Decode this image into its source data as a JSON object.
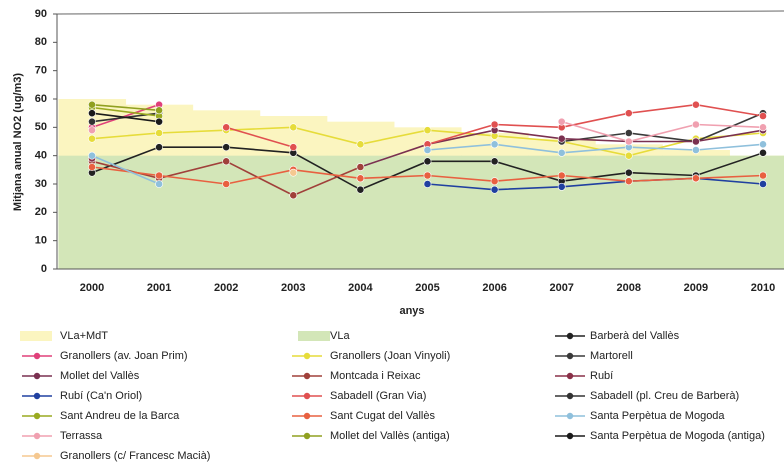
{
  "chart_data": {
    "type": "line",
    "y_label": "Mitjana anual NO2 (ug/m3)",
    "x_label": "anys",
    "categories": [
      "2000",
      "2001",
      "2002",
      "2003",
      "2004",
      "2005",
      "2006",
      "2007",
      "2008",
      "2009",
      "2010"
    ],
    "ylim": [
      0,
      90
    ],
    "yticks": [
      0,
      10,
      20,
      30,
      40,
      50,
      60,
      70,
      80,
      90
    ],
    "grid": false,
    "areas": [
      {
        "name": "VLa+MdT",
        "color": "#fbf5c0",
        "values": [
          60,
          58,
          56,
          54,
          52,
          50,
          48,
          46,
          44,
          42,
          40
        ]
      },
      {
        "name": "VLa",
        "color": "#d3e6b8",
        "values": [
          40,
          40,
          40,
          40,
          40,
          40,
          40,
          40,
          40,
          40,
          40
        ]
      }
    ],
    "series": [
      {
        "name": "Barberà del Vallès",
        "color": "#222222",
        "values": [
          34,
          43,
          43,
          41,
          28,
          38,
          38,
          31,
          34,
          33,
          41
        ]
      },
      {
        "name": "Granollers (av. Joan Prim)",
        "color": "#e0407a",
        "values": [
          50,
          58,
          null,
          null,
          null,
          null,
          null,
          null,
          null,
          null,
          null
        ]
      },
      {
        "name": "Granollers (Joan Vinyoli)",
        "color": "#e6dc3a",
        "values": [
          46,
          48,
          49,
          50,
          44,
          49,
          47,
          45,
          40,
          46,
          48
        ]
      },
      {
        "name": "Martorell",
        "color": "#3a3a3a",
        "values": [
          null,
          null,
          null,
          null,
          null,
          null,
          null,
          45,
          48,
          45,
          55
        ]
      },
      {
        "name": "Mollet del Vallès",
        "color": "#7a3050",
        "values": [
          null,
          null,
          null,
          null,
          36,
          44,
          49,
          46,
          45,
          45,
          49
        ]
      },
      {
        "name": "Montcada i Reixac",
        "color": "#a0403a",
        "values": [
          38,
          32,
          38,
          26,
          36,
          null,
          null,
          null,
          null,
          null,
          null
        ]
      },
      {
        "name": "Rubí",
        "color": "#8a3048",
        "values": [
          39,
          null,
          null,
          null,
          null,
          null,
          null,
          null,
          null,
          null,
          null
        ]
      },
      {
        "name": "Rubí (Ca'n Oriol)",
        "color": "#2040a0",
        "values": [
          null,
          null,
          null,
          null,
          null,
          30,
          28,
          29,
          31,
          32,
          30
        ]
      },
      {
        "name": "Sabadell (Gran Via)",
        "color": "#e05050",
        "values": [
          null,
          null,
          50,
          43,
          null,
          44,
          51,
          50,
          55,
          58,
          54
        ]
      },
      {
        "name": "Sabadell (pl. Creu de Barberà)",
        "color": "#333333",
        "values": [
          52,
          55,
          null,
          null,
          null,
          null,
          null,
          null,
          null,
          null,
          null
        ]
      },
      {
        "name": "Sant Andreu de la Barca",
        "color": "#9aaa20",
        "values": [
          57,
          54,
          null,
          null,
          null,
          null,
          null,
          null,
          null,
          null,
          null
        ]
      },
      {
        "name": "Sant Cugat del Vallès",
        "color": "#e86040",
        "values": [
          36,
          33,
          30,
          35,
          32,
          33,
          31,
          33,
          31,
          32,
          33
        ]
      },
      {
        "name": "Santa Perpètua de Mogoda",
        "color": "#8fc0dc",
        "values": [
          40,
          30,
          null,
          null,
          null,
          42,
          44,
          41,
          43,
          42,
          44
        ]
      },
      {
        "name": "Terrassa",
        "color": "#f0a0b0",
        "values": [
          49,
          null,
          null,
          null,
          null,
          null,
          null,
          52,
          45,
          51,
          50
        ]
      },
      {
        "name": "Mollet del Vallès (antiga)",
        "color": "#90a020",
        "values": [
          58,
          56,
          null,
          null,
          null,
          null,
          null,
          null,
          null,
          null,
          null
        ]
      },
      {
        "name": "Santa Perpètua de Mogoda (antiga)",
        "color": "#1a1a1a",
        "values": [
          55,
          52,
          null,
          null,
          null,
          null,
          null,
          null,
          null,
          null,
          null
        ]
      },
      {
        "name": "Granollers (c/ Francesc Macià)",
        "color": "#f5c890",
        "values": [
          null,
          null,
          null,
          34,
          null,
          null,
          null,
          null,
          null,
          null,
          null
        ]
      }
    ]
  }
}
